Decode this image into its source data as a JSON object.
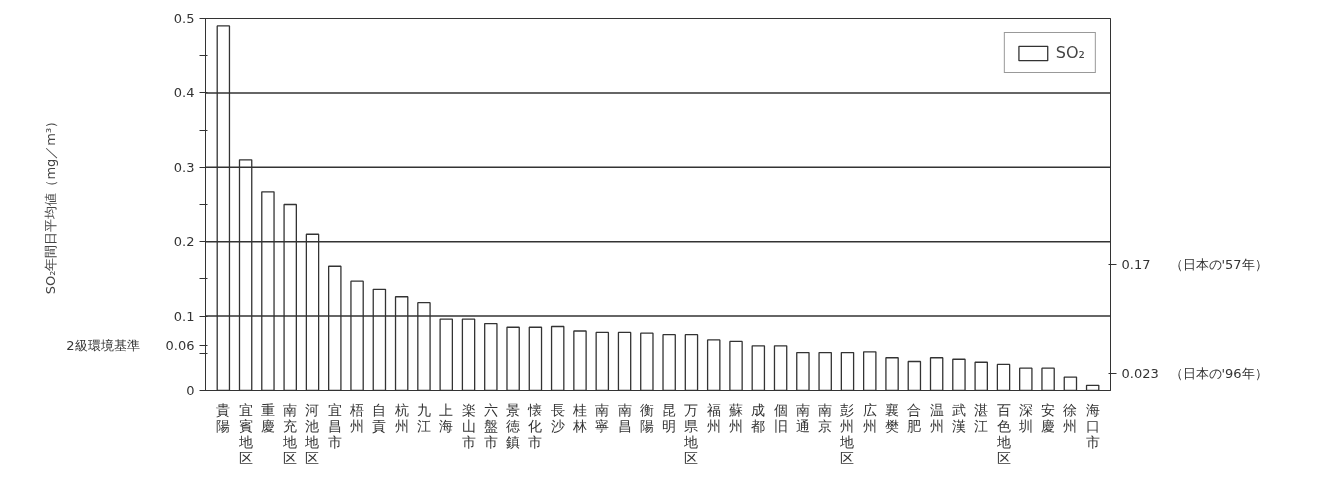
{
  "chart_data": {
    "type": "bar",
    "ylabel": "SO₂年間日平均値（mg／m³）",
    "categories": [
      "貴陽",
      "宜賓地区",
      "重慶",
      "南充地区",
      "河池地区",
      "宜昌市",
      "梧州",
      "自貢",
      "杭州",
      "九江",
      "上海",
      "楽山市",
      "六盤市",
      "景徳鎮",
      "懐化市",
      "長沙",
      "桂林",
      "南寧",
      "南昌",
      "衡陽",
      "昆明",
      "万県地区",
      "福州",
      "蘇州",
      "成都",
      "個旧",
      "南通",
      "南京",
      "彭州地区",
      "広州",
      "襄樊",
      "合肥",
      "温州",
      "武漢",
      "湛江",
      "百色地区",
      "深圳",
      "安慶",
      "徐州",
      "海口市"
    ],
    "series": [
      {
        "name": "SO₂",
        "color": "#ffffff",
        "values": [
          0.49,
          0.31,
          0.267,
          0.25,
          0.21,
          0.167,
          0.147,
          0.136,
          0.126,
          0.118,
          0.096,
          0.096,
          0.09,
          0.085,
          0.085,
          0.086,
          0.08,
          0.078,
          0.078,
          0.077,
          0.075,
          0.075,
          0.068,
          0.066,
          0.06,
          0.06,
          0.051,
          0.051,
          0.051,
          0.052,
          0.044,
          0.039,
          0.044,
          0.042,
          0.038,
          0.035,
          0.03,
          0.03,
          0.018,
          0.007
        ]
      }
    ],
    "ylim": [
      0,
      0.5
    ],
    "yticks": [
      0,
      {
        "value": 0.05,
        "label": null
      },
      {
        "value": 0.06,
        "label": "2級環境基準　　0.06"
      },
      0.1,
      {
        "value": 0.15,
        "label": null
      },
      0.2,
      {
        "value": 0.25,
        "label": null
      },
      0.3,
      {
        "value": 0.35,
        "label": null
      },
      0.4,
      {
        "value": 0.45,
        "label": null
      },
      0.5
    ],
    "y2lim": [
      0,
      0.5
    ],
    "y2ticks": [
      0.023,
      0.17
    ],
    "annotations": [
      "（日本の'96年）",
      "（日本の'57年）"
    ],
    "ref_lines": [
      {
        "axis": "y",
        "value": 0.1,
        "color": "#333333"
      },
      {
        "axis": "y",
        "value": 0.2,
        "color": "#333333"
      },
      {
        "axis": "y",
        "value": 0.3,
        "color": "#333333"
      },
      {
        "axis": "y",
        "value": 0.4,
        "color": "#333333"
      }
    ],
    "grid": false,
    "legend": "top right"
  }
}
